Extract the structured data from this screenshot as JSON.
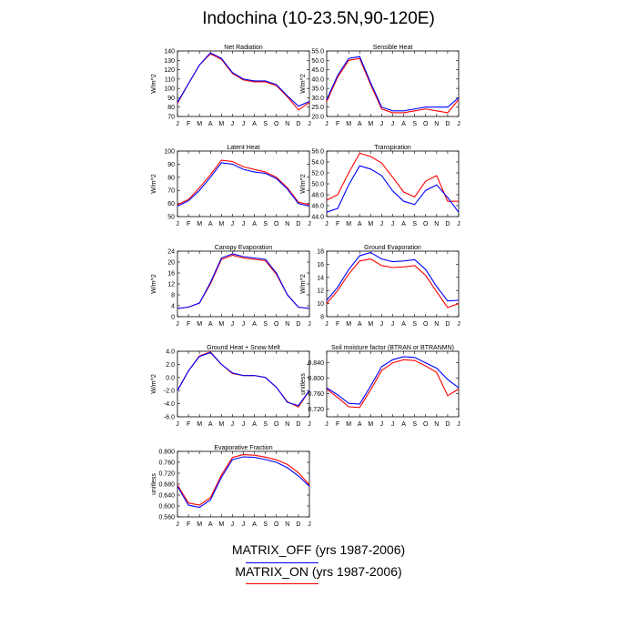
{
  "title": "Indochina (10-23.5N,90-120E)",
  "colors": {
    "off": "#0000ff",
    "on": "#ff0000"
  },
  "legend": [
    {
      "label": "MATRIX_OFF (yrs 1987-2006)",
      "color": "#0000ff"
    },
    {
      "label": "MATRIX_ON (yrs 1987-2006)",
      "color": "#ff0000"
    }
  ],
  "chart_data": [
    {
      "type": "line",
      "title": "Net Radiation",
      "ylabel": "W/m^2",
      "x": [
        "J",
        "F",
        "M",
        "A",
        "M",
        "J",
        "J",
        "A",
        "S",
        "O",
        "N",
        "D",
        "J"
      ],
      "ylim": [
        70,
        140
      ],
      "yticks": [
        "70",
        "80",
        "90",
        "100",
        "110",
        "120",
        "130",
        "140"
      ],
      "series": [
        {
          "name": "MATRIX_OFF",
          "values": [
            85,
            105,
            125,
            138,
            132,
            117,
            110,
            108,
            108,
            104,
            92,
            81,
            86
          ]
        },
        {
          "name": "MATRIX_ON",
          "values": [
            84,
            105,
            125,
            137,
            131,
            116,
            109,
            107,
            107,
            103,
            91,
            77,
            85
          ]
        }
      ]
    },
    {
      "type": "line",
      "title": "Sensible Heat",
      "ylabel": "W/m^2",
      "x": [
        "J",
        "F",
        "M",
        "A",
        "M",
        "J",
        "J",
        "A",
        "S",
        "O",
        "N",
        "D",
        "J"
      ],
      "ylim": [
        20,
        55
      ],
      "yticks": [
        "20.0",
        "25.0",
        "30.0",
        "35.0",
        "40.0",
        "45.0",
        "50.0",
        "55.0"
      ],
      "series": [
        {
          "name": "MATRIX_OFF",
          "values": [
            29,
            42,
            51,
            52,
            38,
            25,
            23,
            23,
            24,
            25,
            25,
            25,
            30
          ]
        },
        {
          "name": "MATRIX_ON",
          "values": [
            28,
            41,
            50,
            51,
            37,
            24,
            22,
            22,
            23,
            24,
            23,
            22,
            29
          ]
        }
      ]
    },
    {
      "type": "line",
      "title": "Latent Heat",
      "ylabel": "W/m^2",
      "x": [
        "J",
        "F",
        "M",
        "A",
        "M",
        "J",
        "J",
        "A",
        "S",
        "O",
        "N",
        "D",
        "J"
      ],
      "ylim": [
        50,
        100
      ],
      "yticks": [
        "50",
        "60",
        "70",
        "80",
        "90",
        "100"
      ],
      "series": [
        {
          "name": "MATRIX_OFF",
          "values": [
            58,
            62,
            70,
            80,
            91,
            90,
            86,
            84,
            83,
            79,
            71,
            60,
            58
          ]
        },
        {
          "name": "MATRIX_ON",
          "values": [
            59,
            63,
            72,
            82,
            93,
            92,
            88,
            86,
            84,
            80,
            72,
            61,
            59
          ]
        }
      ]
    },
    {
      "type": "line",
      "title": "Transpiration",
      "ylabel": "W/m^2",
      "x": [
        "J",
        "F",
        "M",
        "A",
        "M",
        "J",
        "J",
        "A",
        "S",
        "O",
        "N",
        "D",
        "J"
      ],
      "ylim": [
        44,
        56
      ],
      "yticks": [
        "44.0",
        "46.0",
        "48.0",
        "50.0",
        "52.0",
        "54.0",
        "56.0"
      ],
      "series": [
        {
          "name": "MATRIX_OFF",
          "values": [
            44.8,
            45.5,
            49.8,
            53.3,
            52.7,
            51.5,
            48.7,
            46.8,
            46.2,
            48.8,
            49.8,
            47.5,
            44.8
          ]
        },
        {
          "name": "MATRIX_ON",
          "values": [
            47.0,
            48.0,
            52.0,
            55.6,
            55.0,
            53.8,
            51.2,
            48.5,
            47.6,
            50.5,
            51.5,
            46.8,
            46.8
          ]
        }
      ]
    },
    {
      "type": "line",
      "title": "Canopy Evaporation",
      "ylabel": "W/m^2",
      "x": [
        "J",
        "F",
        "M",
        "A",
        "M",
        "J",
        "J",
        "A",
        "S",
        "O",
        "N",
        "D",
        "J"
      ],
      "ylim": [
        0,
        24
      ],
      "yticks": [
        "0",
        "4",
        "8",
        "12",
        "16",
        "20",
        "24"
      ],
      "series": [
        {
          "name": "MATRIX_OFF",
          "values": [
            3,
            3.5,
            5,
            12.5,
            21.5,
            23,
            22,
            21.5,
            21,
            16,
            8,
            3.5,
            3
          ]
        },
        {
          "name": "MATRIX_ON",
          "values": [
            3,
            3.5,
            5,
            12,
            21,
            22.5,
            21.5,
            21,
            20.5,
            15.5,
            8,
            3.5,
            3
          ]
        }
      ]
    },
    {
      "type": "line",
      "title": "Ground Evaporation",
      "ylabel": "W/m^2",
      "x": [
        "J",
        "F",
        "M",
        "A",
        "M",
        "J",
        "J",
        "A",
        "S",
        "O",
        "N",
        "D",
        "J"
      ],
      "ylim": [
        8,
        18
      ],
      "yticks": [
        "8",
        "10",
        "12",
        "14",
        "16",
        "18"
      ],
      "series": [
        {
          "name": "MATRIX_OFF",
          "values": [
            10.5,
            12.5,
            15.2,
            17.3,
            17.8,
            16.8,
            16.4,
            16.5,
            16.7,
            15.2,
            12.6,
            10.4,
            10.5
          ]
        },
        {
          "name": "MATRIX_ON",
          "values": [
            10,
            12,
            14.5,
            16.5,
            16.8,
            15.8,
            15.5,
            15.6,
            15.8,
            14.3,
            11.8,
            9.4,
            10
          ]
        }
      ]
    },
    {
      "type": "line",
      "title": "Ground Heat + Snow Melt",
      "ylabel": "W/m^2",
      "x": [
        "J",
        "F",
        "M",
        "A",
        "M",
        "J",
        "J",
        "A",
        "S",
        "O",
        "N",
        "D",
        "J"
      ],
      "ylim": [
        -6,
        4
      ],
      "yticks": [
        "-6.0",
        "-4.0",
        "-2.0",
        "0.0",
        "2.0",
        "4.0"
      ],
      "series": [
        {
          "name": "MATRIX_OFF",
          "values": [
            -2,
            1,
            3.2,
            3.8,
            2,
            0.7,
            0.3,
            0.3,
            0,
            -1.5,
            -3.8,
            -4.3,
            -2
          ]
        },
        {
          "name": "MATRIX_ON",
          "values": [
            -2,
            1,
            3.3,
            3.9,
            2,
            0.6,
            0.3,
            0.3,
            0,
            -1.5,
            -3.7,
            -4.5,
            -2
          ]
        }
      ]
    },
    {
      "type": "line",
      "title": "Soil moisture factor (BTRAN or BTRANMN)",
      "ylabel": "unitless",
      "x": [
        "J",
        "F",
        "M",
        "A",
        "M",
        "J",
        "J",
        "A",
        "S",
        "O",
        "N",
        "D",
        "J"
      ],
      "ylim": [
        0.7,
        0.87
      ],
      "yticks": [
        "0.720",
        "0.760",
        "0.800",
        "0.840"
      ],
      "series": [
        {
          "name": "MATRIX_OFF",
          "values": [
            0.775,
            0.757,
            0.735,
            0.733,
            0.78,
            0.83,
            0.848,
            0.856,
            0.854,
            0.84,
            0.826,
            0.797,
            0.775
          ]
        },
        {
          "name": "MATRIX_ON",
          "values": [
            0.772,
            0.75,
            0.726,
            0.724,
            0.77,
            0.82,
            0.84,
            0.848,
            0.846,
            0.832,
            0.815,
            0.755,
            0.772
          ]
        }
      ]
    },
    {
      "type": "line",
      "title": "Evaporative Fraction",
      "ylabel": "unitless",
      "x": [
        "J",
        "F",
        "M",
        "A",
        "M",
        "J",
        "J",
        "A",
        "S",
        "O",
        "N",
        "D",
        "J"
      ],
      "ylim": [
        0.56,
        0.8
      ],
      "yticks": [
        "0.560",
        "0.600",
        "0.640",
        "0.680",
        "0.720",
        "0.760",
        "0.800"
      ],
      "series": [
        {
          "name": "MATRIX_OFF",
          "values": [
            0.672,
            0.603,
            0.595,
            0.622,
            0.705,
            0.77,
            0.78,
            0.778,
            0.77,
            0.76,
            0.74,
            0.71,
            0.672
          ]
        },
        {
          "name": "MATRIX_ON",
          "values": [
            0.677,
            0.611,
            0.603,
            0.63,
            0.713,
            0.778,
            0.788,
            0.786,
            0.779,
            0.769,
            0.752,
            0.722,
            0.677
          ]
        }
      ]
    }
  ]
}
